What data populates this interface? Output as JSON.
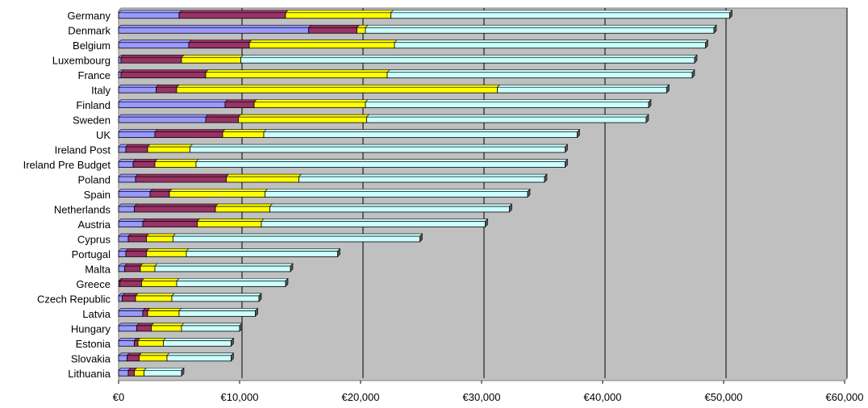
{
  "chart_data": {
    "type": "bar",
    "orientation": "horizontal",
    "stacked": true,
    "title": "",
    "xlabel": "",
    "ylabel": "",
    "xlim": [
      0,
      60000
    ],
    "xticks": [
      0,
      10000,
      20000,
      30000,
      40000,
      50000,
      60000
    ],
    "xtick_labels": [
      "€0",
      "€10,000",
      "€20,000",
      "€30,000",
      "€40,000",
      "€50,000",
      "€60,000"
    ],
    "grid": true,
    "legend": "none",
    "plot_background": "#c0c0c0",
    "categories": [
      "Germany",
      "Denmark",
      "Belgium",
      "Luxembourg",
      "France",
      "Italy",
      "Finland",
      "Sweden",
      "UK",
      "Ireland Post",
      "Ireland Pre Budget",
      "Poland",
      "Spain",
      "Netherlands",
      "Austria",
      "Cyprus",
      "Portugal",
      "Malta",
      "Greece",
      "Czech Republic",
      "Latvia",
      "Hungary",
      "Estonia",
      "Slovakia",
      "Lithuania"
    ],
    "series": [
      {
        "color": "#9999ff",
        "values": [
          5000,
          15700,
          5800,
          200,
          200,
          3100,
          8800,
          7200,
          3000,
          600,
          1200,
          1400,
          2600,
          1300,
          2000,
          800,
          600,
          500,
          100,
          300,
          2000,
          1500,
          1300,
          700,
          800
        ]
      },
      {
        "color": "#993366",
        "values": [
          8800,
          4000,
          5000,
          5000,
          7000,
          1700,
          2400,
          2700,
          5600,
          1800,
          1800,
          7500,
          1600,
          6700,
          4500,
          1500,
          1700,
          1300,
          1800,
          1100,
          400,
          1200,
          300,
          1000,
          500
        ]
      },
      {
        "color": "#ffff00",
        "values": [
          8700,
          700,
          12000,
          4900,
          15000,
          26500,
          9200,
          10600,
          3400,
          3500,
          3400,
          6000,
          7900,
          4500,
          5300,
          2200,
          3300,
          1200,
          2900,
          3000,
          2600,
          2500,
          2100,
          2300,
          800
        ]
      },
      {
        "color": "#ccffff",
        "values": [
          28000,
          28800,
          25700,
          37500,
          25200,
          14000,
          23400,
          23100,
          25900,
          31000,
          30500,
          20300,
          21700,
          19800,
          18500,
          20400,
          12500,
          11200,
          9000,
          7200,
          6300,
          4800,
          5600,
          5300,
          3100
        ]
      }
    ]
  }
}
